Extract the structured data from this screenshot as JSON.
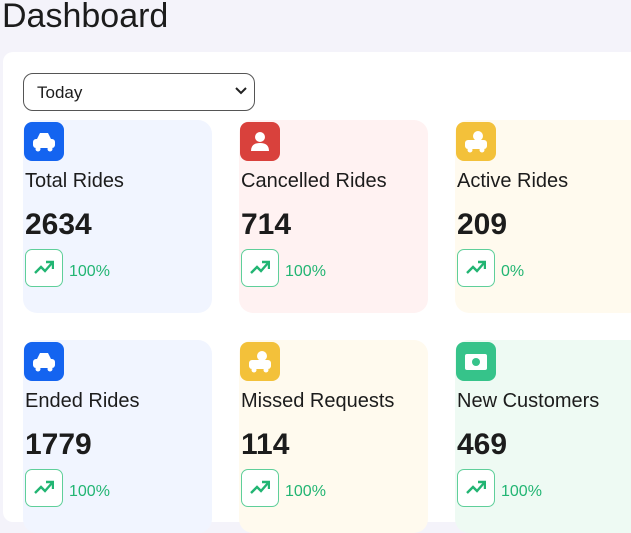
{
  "header": {
    "title": "Dashboard"
  },
  "filter": {
    "selected": "Today"
  },
  "cards": [
    {
      "label": "Total Rides",
      "value": 2634,
      "change": "100%"
    },
    {
      "label": "Cancelled Rides",
      "value": 714,
      "change": "100%"
    },
    {
      "label": "Active Rides",
      "value": 209,
      "change": "0%"
    },
    {
      "label": "Ended Rides",
      "value": 1779,
      "change": "100%"
    },
    {
      "label": "Missed Requests",
      "value": 114,
      "change": "100%"
    },
    {
      "label": "New Customers",
      "value": 469,
      "change": "100%"
    }
  ]
}
